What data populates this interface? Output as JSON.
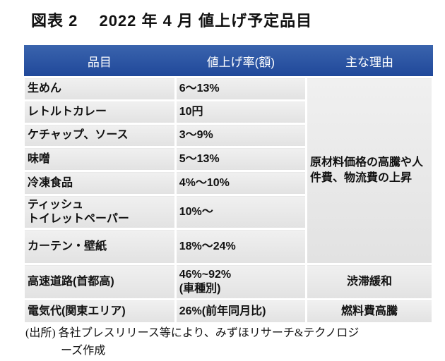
{
  "title": "図表 2　 2022 年 4 月 値上げ予定品目",
  "headers": [
    "品目",
    "値上げ率(額)",
    "主な理由"
  ],
  "rows": [
    {
      "item": "生めん",
      "rate": "6～13%"
    },
    {
      "item": "レトルトカレー",
      "rate": "10円"
    },
    {
      "item": "ケチャップ、ソース",
      "rate": "3～9%"
    },
    {
      "item": "味噌",
      "rate": "5～13%"
    },
    {
      "item": "冷凍食品",
      "rate": "4%～10%"
    },
    {
      "item": "ティッシュ",
      "item2": "トイレットペーパー",
      "rate": "10%～"
    },
    {
      "item": "カーテン・壁紙",
      "rate": "18%～24%"
    },
    {
      "item": "高速道路(首都高)",
      "rate": "46%~92%",
      "rate2": "(車種別)",
      "reason": "渋滞緩和"
    },
    {
      "item": "電気代(関東エリア)",
      "rate": "26%(前年同月比)",
      "reason": "燃料費高騰"
    }
  ],
  "shared_reason": "原材料価格の高騰や人件費、物流費の上昇",
  "footnote": {
    "line1": "(出所) 各社プレスリリース等により、みずほリサーチ&テクノロジ",
    "line2": "ーズ作成"
  }
}
